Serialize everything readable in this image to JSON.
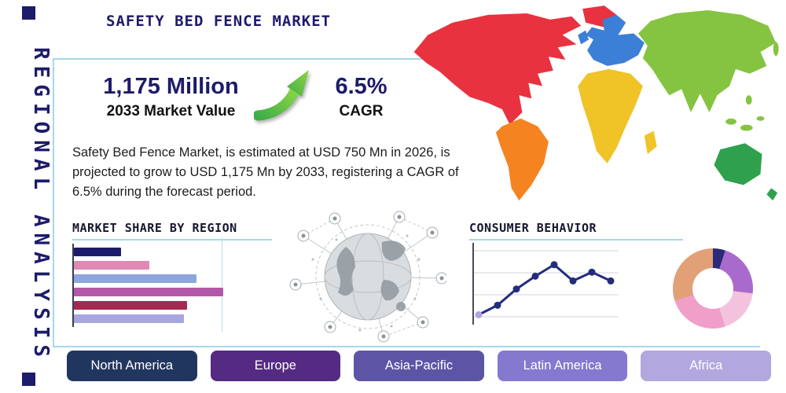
{
  "page": {
    "title": "SAFETY BED FENCE MARKET",
    "side_label": "REGIONAL ANALYSIS",
    "accent_line_color": "#a6d8ec",
    "navy": "#1d1b6b"
  },
  "stats": {
    "market_value": "1,175 Million",
    "market_value_caption": "2033 Market Value",
    "cagr_value": "6.5%",
    "cagr_caption": "CAGR",
    "description": "Safety Bed Fence Market, is estimated at USD 750 Mn in 2026, is projected to grow to USD 1,175 Mn by 2033, registering a CAGR of 6.5% during the forecast period."
  },
  "sections": {
    "market_share_title": "MARKET SHARE BY REGION",
    "consumer_behavior_title": "CONSUMER BEHAVIOR"
  },
  "chart_data": [
    {
      "id": "market_share_bars",
      "type": "bar",
      "orientation": "horizontal",
      "title": "MARKET SHARE BY REGION",
      "values": [
        30,
        48,
        78,
        95,
        72,
        70
      ],
      "xlim": [
        0,
        100
      ],
      "unit": "percent of axis (bars unlabeled in source)",
      "colors": [
        "#1d1b6b",
        "#e089b4",
        "#8fa6dc",
        "#b357a8",
        "#a22a52",
        "#a7a6de"
      ],
      "grid": "single vertical gridline at 95%"
    },
    {
      "id": "consumer_behavior_line",
      "type": "line",
      "title": "CONSUMER BEHAVIOR",
      "x": [
        1,
        2,
        3,
        4,
        5,
        6,
        7,
        8
      ],
      "values": [
        1.0,
        2.4,
        4.8,
        6.7,
        8.4,
        6.0,
        7.3,
        6.0
      ],
      "ylim": [
        0,
        10
      ],
      "grid": "horizontal gridlines, left axis line",
      "line_color": "#232d7b",
      "marker_color": "#232d7b",
      "first_marker_color": "#b1a3de"
    },
    {
      "id": "regional_donut",
      "type": "pie",
      "donut": true,
      "slices": [
        {
          "label": "slice-navy",
          "value": 5,
          "color": "#2a2a78"
        },
        {
          "label": "slice-purple",
          "value": 22,
          "color": "#a86bcd"
        },
        {
          "label": "slice-light-pink",
          "value": 18,
          "color": "#f3c3dd"
        },
        {
          "label": "slice-pink",
          "value": 25,
          "color": "#f09fc9"
        },
        {
          "label": "slice-tan",
          "value": 30,
          "color": "#e2a077"
        }
      ]
    }
  ],
  "map": {
    "name": "world-map",
    "regions": [
      {
        "id": "north-america",
        "color": "#e8323f"
      },
      {
        "id": "greenland",
        "color": "#e8323f"
      },
      {
        "id": "south-america",
        "color": "#f5831f"
      },
      {
        "id": "europe",
        "color": "#3c7fd6"
      },
      {
        "id": "africa",
        "color": "#f0c327"
      },
      {
        "id": "asia",
        "color": "#85c441"
      },
      {
        "id": "australia",
        "color": "#2fa14c"
      }
    ]
  },
  "region_buttons": [
    {
      "label": "North America",
      "color": "#21365f"
    },
    {
      "label": "Europe",
      "color": "#542a82"
    },
    {
      "label": "Asia-Pacific",
      "color": "#5c55a6"
    },
    {
      "label": "Latin America",
      "color": "#8478cf"
    },
    {
      "label": "Africa",
      "color": "#b2a8df"
    }
  ]
}
